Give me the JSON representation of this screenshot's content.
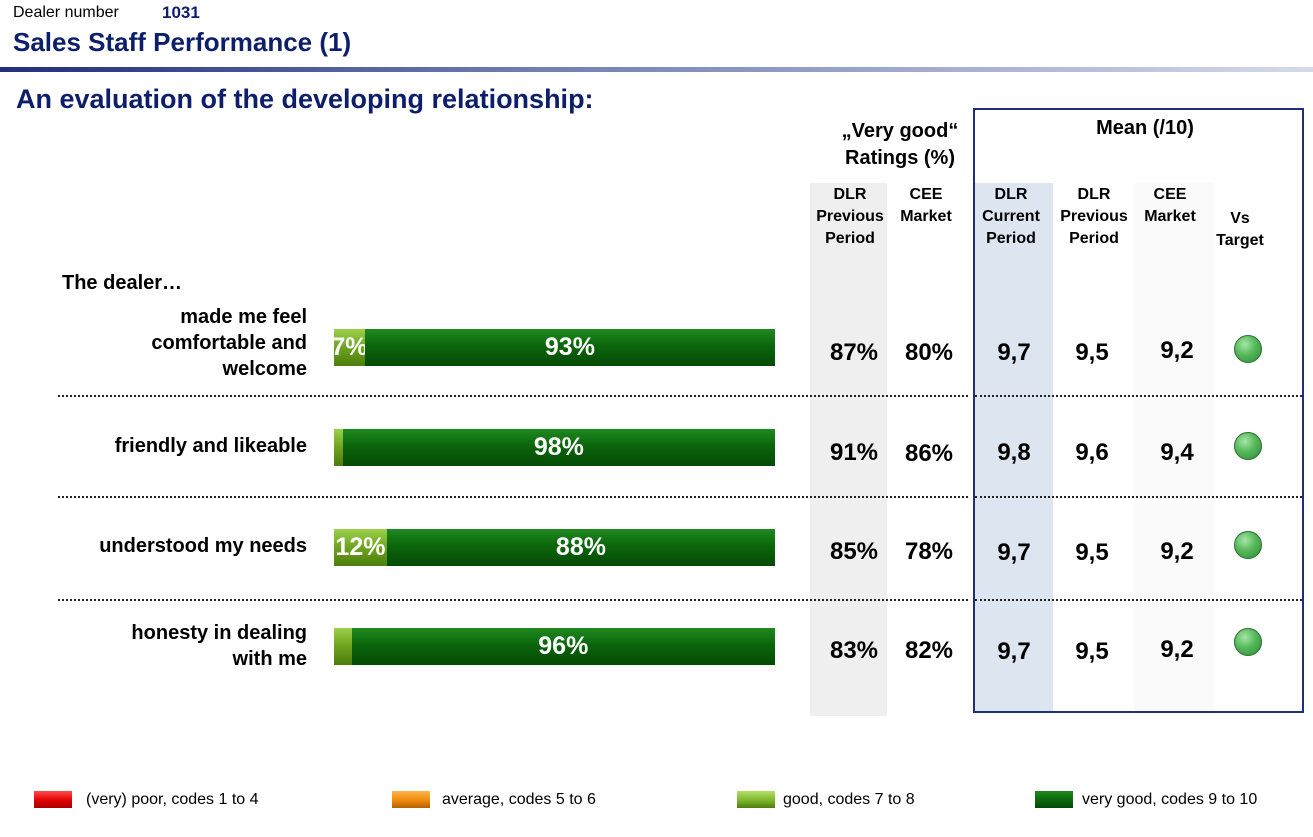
{
  "header": {
    "dealer_label": "Dealer number",
    "dealer_number": "1031",
    "title": "Sales Staff Performance (1)",
    "section_title": "An evaluation of the developing relationship:"
  },
  "groups": {
    "very_good": [
      "„Very good“",
      "Ratings (%)"
    ],
    "mean": "Mean (/10)"
  },
  "columns": [
    {
      "lines": [
        "DLR",
        "Previous",
        "Period"
      ]
    },
    {
      "lines": [
        "CEE",
        "Market"
      ]
    },
    {
      "lines": [
        "DLR",
        "Current",
        "Period"
      ]
    },
    {
      "lines": [
        "DLR",
        "Previous",
        "Period"
      ]
    },
    {
      "lines": [
        "CEE",
        "Market"
      ]
    },
    {
      "lines": [
        "Vs",
        "Target"
      ]
    }
  ],
  "intro": "The dealer…",
  "colors": {
    "very_good": "#0b660b",
    "good": "#7db52a",
    "average": "#ee8a0f",
    "poor": "#e00000",
    "on_target": "#55b85a"
  },
  "chart_data": {
    "type": "bar",
    "orientation": "horizontal",
    "stacked": true,
    "categories": [
      [
        "made me feel",
        "comfortable and",
        "welcome"
      ],
      [
        "friendly and likeable"
      ],
      [
        "understood my needs"
      ],
      [
        "honesty in dealing",
        "with me"
      ]
    ],
    "series": [
      {
        "name": "good, codes 7 to 8",
        "values": [
          7,
          2,
          12,
          4
        ],
        "labels": [
          "7%",
          "",
          "12%",
          ""
        ]
      },
      {
        "name": "very good, codes 9 to 10",
        "values": [
          93,
          98,
          88,
          96
        ],
        "labels": [
          "93%",
          "98%",
          "88%",
          "96%"
        ]
      }
    ],
    "xlim": [
      0,
      100
    ],
    "table": {
      "very_good_dlr_previous": [
        "87%",
        "91%",
        "85%",
        "83%"
      ],
      "very_good_cee_market": [
        "80%",
        "86%",
        "78%",
        "82%"
      ],
      "mean_dlr_current": [
        "9,7",
        "9,8",
        "9,7",
        "9,7"
      ],
      "mean_dlr_previous": [
        "9,5",
        "9,6",
        "9,5",
        "9,5"
      ],
      "mean_cee_market": [
        "9,2",
        "9,4",
        "9,2",
        "9,2"
      ],
      "vs_target": [
        "on target",
        "on target",
        "on target",
        "on target"
      ]
    },
    "legend": [
      {
        "key": "poor",
        "label": "(very) poor, codes 1 to 4"
      },
      {
        "key": "average",
        "label": "average, codes 5 to 6"
      },
      {
        "key": "good",
        "label": "good, codes 7 to 8"
      },
      {
        "key": "very_good",
        "label": "very good, codes 9 to 10"
      }
    ]
  }
}
